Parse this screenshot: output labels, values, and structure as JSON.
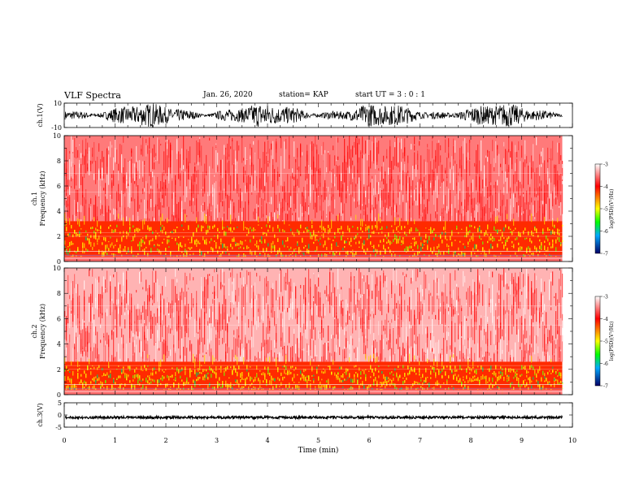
{
  "header": {
    "title": "VLF Spectra",
    "date": "Jan. 26, 2020",
    "station": "station= KAP",
    "start_ut": "start  UT =   3 : 0  : 1"
  },
  "chart_data": [
    {
      "type": "line",
      "panel": "ch1-waveform",
      "ylabel": "ch.1(V)",
      "ylim": [
        -10,
        10
      ],
      "yticks": [
        "10",
        "-10"
      ],
      "xlim": [
        0,
        10
      ],
      "data_xmax": 9.8,
      "series": [
        {
          "values_range": [
            -10,
            10
          ],
          "color": "#000000"
        }
      ]
    },
    {
      "type": "heatmap",
      "panel": "ch1-spectrogram",
      "ylabel_line1": "ch.1",
      "ylabel_line2": "Frequency  (kHz)",
      "ylim": [
        0,
        10
      ],
      "yticks": [
        "0",
        "2",
        "4",
        "6",
        "8",
        "10"
      ],
      "xlim": [
        0,
        10
      ],
      "data_xmax": 9.8,
      "strong_band_khz": [
        0.4,
        3.2
      ],
      "colorbar": {
        "label": "log(PSD)(V²/Hz)",
        "range": [
          -7,
          -3
        ],
        "ticks": [
          "-3",
          "-4",
          "-5",
          "-6",
          "-7"
        ]
      }
    },
    {
      "type": "heatmap",
      "panel": "ch2-spectrogram",
      "ylabel_line1": "ch.2",
      "ylabel_line2": "Frequency  (kHz)",
      "ylim": [
        0,
        10
      ],
      "yticks": [
        "0",
        "2",
        "4",
        "6",
        "8",
        "10"
      ],
      "xlim": [
        0,
        10
      ],
      "data_xmax": 9.8,
      "strong_band_khz": [
        0.4,
        2.6
      ],
      "colorbar": {
        "label": "log(PSD)(V²/Hz)",
        "range": [
          -7,
          -3
        ],
        "ticks": [
          "-3",
          "-4",
          "-5",
          "-6",
          "-7"
        ]
      }
    },
    {
      "type": "line",
      "panel": "ch3-waveform",
      "ylabel": "ch.3(V)",
      "ylim": [
        -5,
        5
      ],
      "yticks": [
        "5",
        "0",
        "-5"
      ],
      "xlim": [
        0,
        10
      ],
      "data_xmax": 9.8,
      "series": [
        {
          "values_range": [
            -1.5,
            -0.5
          ],
          "color": "#000000"
        }
      ]
    }
  ],
  "xaxis": {
    "label": "Time  (min)",
    "ticks": [
      "0",
      "1",
      "2",
      "3",
      "4",
      "5",
      "6",
      "7",
      "8",
      "9",
      "10"
    ]
  },
  "colors": {
    "ink": "#000000",
    "psd_high": "#ff0000",
    "psd_mid": "#ffff00",
    "psd_low": "#00ff00",
    "psd_lowest": "#0000ff"
  }
}
